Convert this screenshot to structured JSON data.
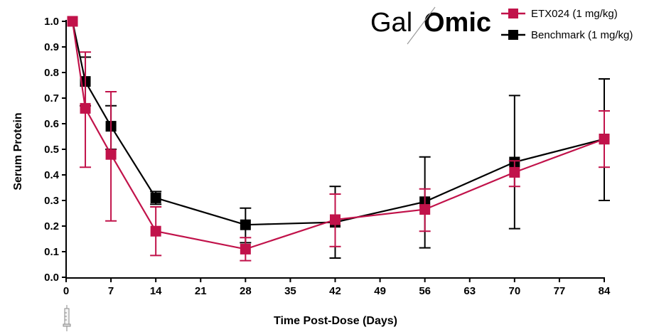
{
  "logo": {
    "text_left": "Gal",
    "text_right": "Omic",
    "color_left": "#3d3d3d",
    "color_right": "#c1124a"
  },
  "chart_data": {
    "type": "line",
    "xlabel": "Time Post-Dose (Days)",
    "ylabel": "Serum Protein",
    "xlim": [
      0,
      84
    ],
    "ylim": [
      0,
      1.0
    ],
    "xticks": [
      0,
      7,
      14,
      21,
      28,
      35,
      42,
      49,
      56,
      63,
      70,
      77,
      84
    ],
    "yticks": [
      0.0,
      0.1,
      0.2,
      0.3,
      0.4,
      0.5,
      0.6,
      0.7,
      0.8,
      0.9,
      1.0
    ],
    "grid": false,
    "legend_position": "top-right",
    "dosing_marker": "syringe-icon",
    "series": [
      {
        "name": "ETX024 (1 mg/kg)",
        "color": "#c1124a",
        "x": [
          1,
          3,
          7,
          14,
          28,
          42,
          56,
          70,
          84
        ],
        "y": [
          1.0,
          0.66,
          0.48,
          0.18,
          0.11,
          0.225,
          0.265,
          0.41,
          0.54
        ],
        "err_low": [
          1.0,
          0.43,
          0.22,
          0.085,
          0.065,
          0.12,
          0.18,
          0.355,
          0.43
        ],
        "err_high": [
          1.0,
          0.88,
          0.725,
          0.275,
          0.155,
          0.325,
          0.345,
          0.455,
          0.65
        ]
      },
      {
        "name": "Benchmark (1 mg/kg)",
        "color": "#000000",
        "x": [
          1,
          3,
          7,
          14,
          28,
          42,
          56,
          70,
          84
        ],
        "y": [
          1.0,
          0.765,
          0.59,
          0.31,
          0.205,
          0.215,
          0.295,
          0.45,
          0.54
        ],
        "err_low": [
          1.0,
          0.67,
          0.5,
          0.285,
          0.135,
          0.075,
          0.115,
          0.19,
          0.3
        ],
        "err_high": [
          1.0,
          0.86,
          0.67,
          0.335,
          0.27,
          0.355,
          0.47,
          0.71,
          0.775
        ]
      }
    ]
  }
}
